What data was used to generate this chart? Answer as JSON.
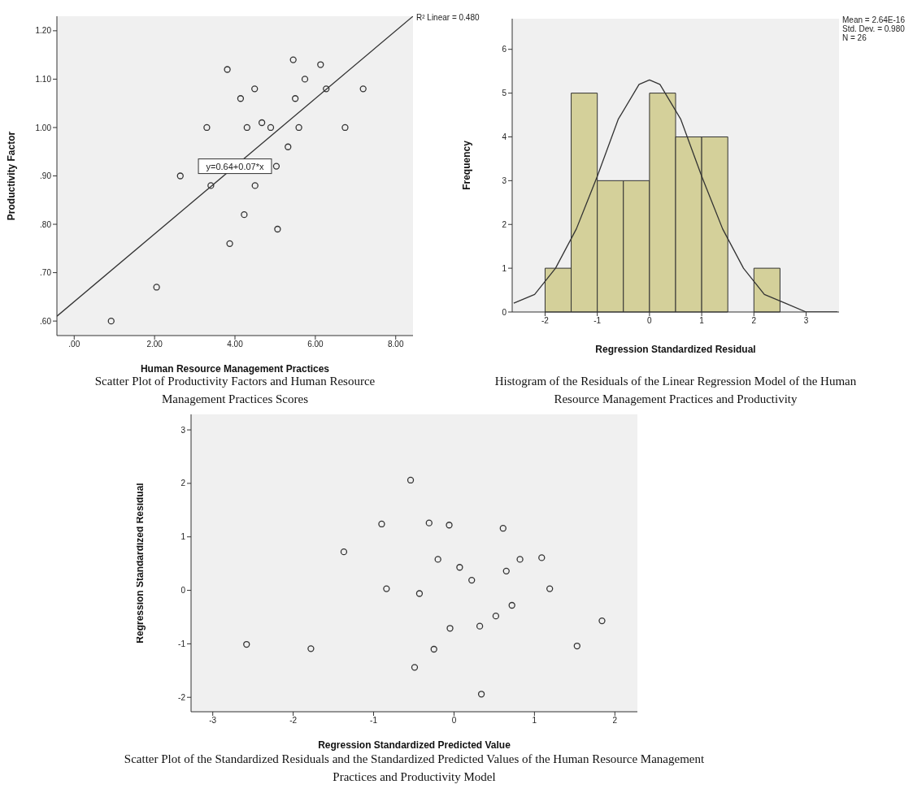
{
  "chart_data": [
    {
      "type": "scatter",
      "title": "Scatter Plot of Productivity Factors and Human Resource Management Practices Scores",
      "xlabel": "Human Resource Management Practices",
      "ylabel": "Productivity Factor",
      "xlim": [
        -0.43,
        8.43
      ],
      "ylim": [
        0.57,
        1.23
      ],
      "xticks": [
        {
          "value": 0,
          "label": ".00"
        },
        {
          "value": 2,
          "label": "2.00"
        },
        {
          "value": 4,
          "label": "4.00"
        },
        {
          "value": 6,
          "label": "6.00"
        },
        {
          "value": 8,
          "label": "8.00"
        }
      ],
      "yticks": [
        {
          "value": 0.6,
          "label": ".60"
        },
        {
          "value": 0.7,
          "label": ".70"
        },
        {
          "value": 0.8,
          "label": ".80"
        },
        {
          "value": 0.9,
          "label": ".90"
        },
        {
          "value": 1.0,
          "label": "1.00"
        },
        {
          "value": 1.1,
          "label": "1.10"
        },
        {
          "value": 1.2,
          "label": "1.20"
        }
      ],
      "grid": false,
      "marker": "circle",
      "series": [
        {
          "type": "scatter",
          "color": "#333333",
          "x": [
            0.92,
            2.05,
            2.64,
            3.3,
            3.4,
            3.81,
            3.87,
            4.14,
            4.23,
            4.3,
            4.49,
            4.5,
            4.67,
            4.89,
            5.03,
            5.06,
            5.32,
            5.45,
            5.5,
            5.59,
            5.74,
            6.13,
            6.27,
            6.74,
            7.19
          ],
          "values": [
            0.6,
            0.67,
            0.9,
            1.0,
            0.88,
            1.12,
            0.76,
            1.06,
            0.82,
            1.0,
            1.08,
            0.88,
            1.01,
            1.0,
            0.92,
            0.79,
            0.96,
            1.14,
            1.06,
            1.0,
            1.1,
            1.13,
            1.08,
            1.0,
            1.08
          ]
        },
        {
          "type": "line",
          "marker": "none",
          "color": "#333333",
          "x": [
            -0.43,
            8.43
          ],
          "values": [
            0.61,
            1.23
          ]
        }
      ],
      "annotations": [
        "R² Linear = 0.480",
        {
          "text": "y=0.64+0.07*x",
          "x": 4.0,
          "y": 0.92
        }
      ]
    },
    {
      "type": "histogram",
      "title": "Histogram of the Residuals of the Linear Regression Model of the Human Resource Management Practices and Productivity",
      "xlabel": "Regression Standardized Residual",
      "ylabel": "Frequency",
      "bins": [
        -2,
        -1.5,
        -1,
        -0.5,
        0,
        0.5,
        1,
        1.5,
        2,
        2.5
      ],
      "values": [
        1,
        5,
        3,
        3,
        5,
        4,
        4,
        0,
        1
      ],
      "color": "#d4d09a",
      "xlim": [
        -2.63,
        3.63
      ],
      "ylim": [
        0,
        6.7
      ],
      "xticks": [
        -2,
        -1,
        0,
        1,
        2,
        3
      ],
      "yticks": [
        0,
        1,
        2,
        3,
        4,
        5,
        6
      ],
      "grid": false,
      "series": [
        {
          "type": "line",
          "color": "#333333",
          "x": [
            -2.6,
            -2.2,
            -1.8,
            -1.4,
            -1.0,
            -0.6,
            -0.2,
            0,
            0.2,
            0.6,
            1.0,
            1.4,
            1.8,
            2.2,
            2.6,
            3.0,
            3.4,
            3.6
          ],
          "values": [
            0.2,
            0.4,
            1.0,
            1.9,
            3.1,
            4.4,
            5.2,
            5.3,
            5.2,
            4.4,
            3.1,
            1.9,
            1.0,
            0.4,
            0.2,
            0.0,
            0.0,
            0.0
          ]
        }
      ],
      "annotations": [
        "Mean = 2.64E-16",
        "Std. Dev. = 0.980",
        "N = 26"
      ]
    },
    {
      "type": "scatter",
      "title": "Scatter Plot of the Standardized Residuals and the Standardized Predicted Values of the Human Resource Management Practices and Productivity Model",
      "xlabel": "Regression Standardized Predicted Value",
      "ylabel": "Regression Standardized Residual",
      "xlim": [
        -3.27,
        2.28
      ],
      "ylim": [
        -2.27,
        3.29
      ],
      "xticks": [
        -3,
        -2,
        -1,
        0,
        1,
        2
      ],
      "yticks": [
        -2,
        -1,
        0,
        1,
        2,
        3
      ],
      "grid": false,
      "marker": "circle",
      "color": "#333333",
      "x": [
        -2.58,
        -1.78,
        -1.37,
        -0.9,
        -0.84,
        -0.54,
        -0.49,
        -0.43,
        -0.31,
        -0.25,
        -0.2,
        -0.06,
        -0.05,
        0.07,
        0.22,
        0.32,
        0.34,
        0.52,
        0.61,
        0.65,
        0.72,
        0.82,
        1.09,
        1.19,
        1.53,
        1.84
      ],
      "values": [
        -1.01,
        -1.09,
        0.72,
        1.24,
        0.03,
        2.06,
        -1.44,
        -0.06,
        1.26,
        -1.1,
        0.58,
        1.22,
        -0.71,
        0.43,
        0.19,
        -0.67,
        -1.94,
        -0.48,
        1.16,
        0.36,
        -0.28,
        0.58,
        0.61,
        0.03,
        -1.04,
        -0.57
      ]
    }
  ]
}
